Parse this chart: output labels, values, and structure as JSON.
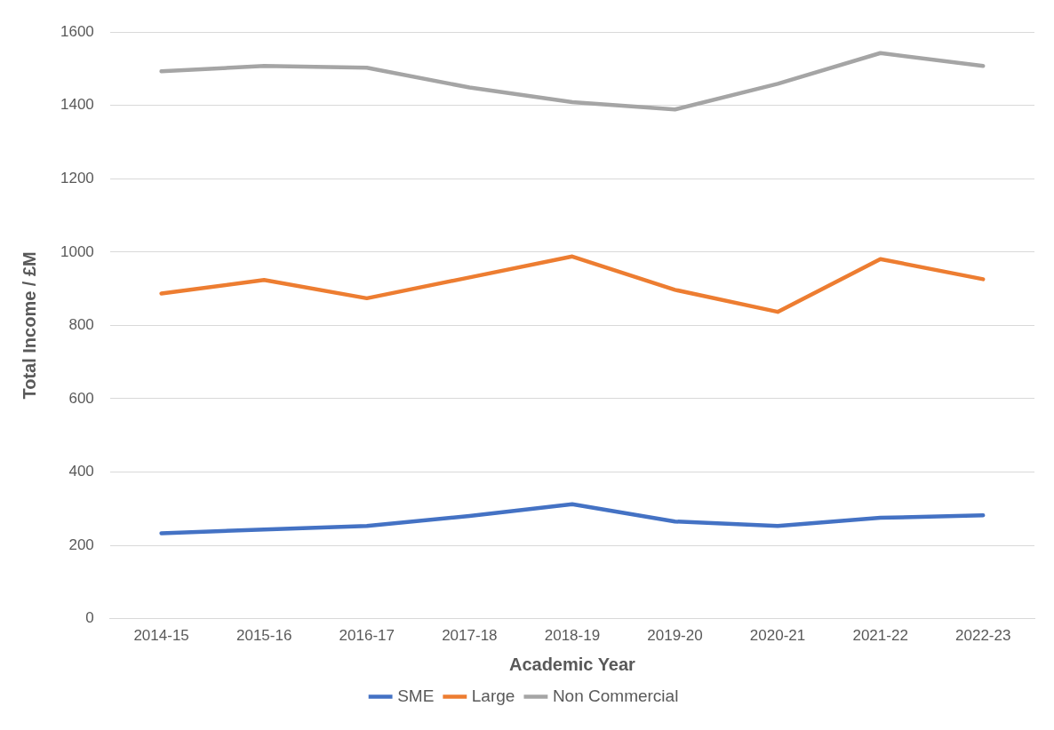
{
  "chart_data": {
    "type": "line",
    "xlabel": "Academic Year",
    "ylabel": "Total Income / £M",
    "categories": [
      "2014-15",
      "2015-16",
      "2016-17",
      "2017-18",
      "2018-19",
      "2019-20",
      "2020-21",
      "2021-22",
      "2022-23"
    ],
    "series": [
      {
        "name": "SME",
        "color": "#4472c4",
        "values": [
          233,
          243,
          253,
          280,
          312,
          265,
          253,
          275,
          282
        ]
      },
      {
        "name": "Large",
        "color": "#ed7d31",
        "values": [
          887,
          924,
          874,
          931,
          988,
          897,
          837,
          981,
          926
        ]
      },
      {
        "name": "Non Commercial",
        "color": "#a5a5a5",
        "values": [
          1493,
          1508,
          1503,
          1449,
          1409,
          1389,
          1459,
          1543,
          1508
        ]
      }
    ],
    "ylim": [
      0,
      1600
    ],
    "yticks": [
      0,
      200,
      400,
      600,
      800,
      1000,
      1200,
      1400,
      1600
    ],
    "grid": "y",
    "legend": "bottom",
    "marker": "none",
    "line_style": "solid"
  }
}
